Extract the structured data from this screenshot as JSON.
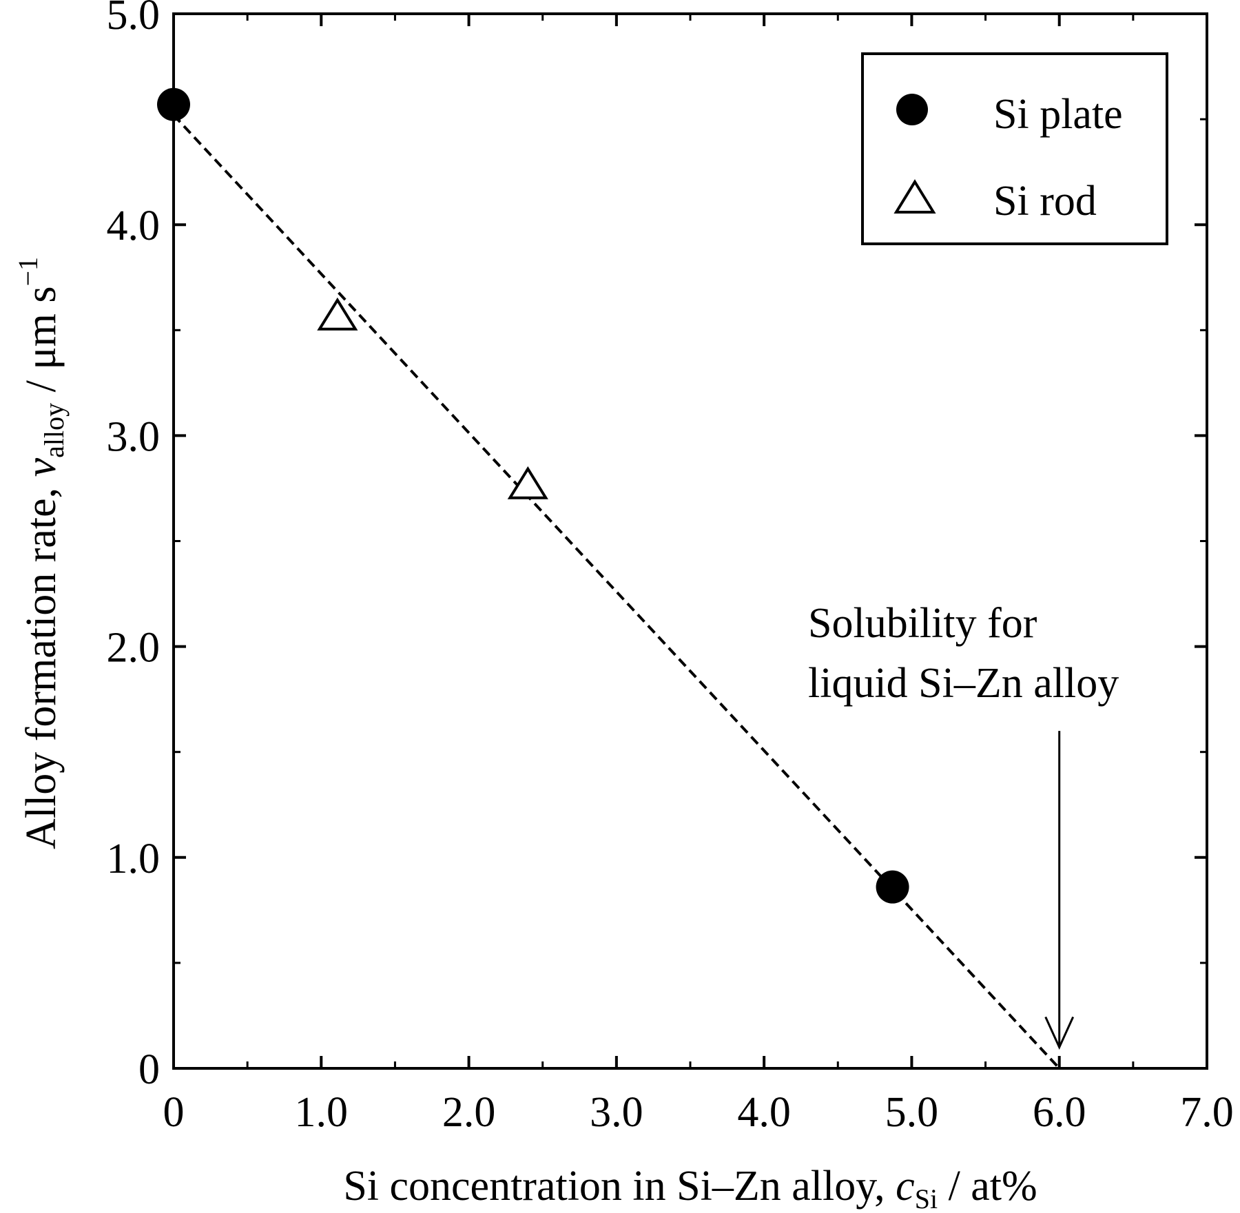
{
  "chart_data": {
    "type": "scatter",
    "xlabel": {
      "main": "Si concentration in Si–Zn alloy, ",
      "var": "c",
      "sub": "Si",
      "unit": " / at%"
    },
    "ylabel": {
      "main": "Alloy formation rate, ",
      "var": "v",
      "sub": "alloy",
      "unit_pre": " / μm s",
      "unit_sup": "−1"
    },
    "xlim": [
      0,
      7
    ],
    "ylim": [
      0,
      5
    ],
    "x_ticks": [
      {
        "value": 0,
        "label": "0"
      },
      {
        "value": 1,
        "label": "1.0"
      },
      {
        "value": 2,
        "label": "2.0"
      },
      {
        "value": 3,
        "label": "3.0"
      },
      {
        "value": 4,
        "label": "4.0"
      },
      {
        "value": 5,
        "label": "5.0"
      },
      {
        "value": 6,
        "label": "6.0"
      },
      {
        "value": 7,
        "label": "7.0"
      }
    ],
    "y_ticks": [
      {
        "value": 0,
        "label": "0"
      },
      {
        "value": 1,
        "label": "1.0"
      },
      {
        "value": 2,
        "label": "2.0"
      },
      {
        "value": 3,
        "label": "3.0"
      },
      {
        "value": 4,
        "label": "4.0"
      },
      {
        "value": 5,
        "label": "5.0"
      }
    ],
    "x_minor_step": 0.5,
    "y_minor_step": 0.5,
    "grid": false,
    "legend_position": "top-right",
    "series": [
      {
        "name": "Si plate",
        "marker": "filled-circle",
        "color": "#000000",
        "points": [
          {
            "x": 0.0,
            "y": 4.57
          },
          {
            "x": 4.87,
            "y": 0.86
          }
        ]
      },
      {
        "name": "Si rod",
        "marker": "open-triangle",
        "color": "#000000",
        "points": [
          {
            "x": 1.11,
            "y": 3.56
          },
          {
            "x": 2.4,
            "y": 2.76
          }
        ]
      }
    ],
    "fit_line": {
      "style": "dashed",
      "points": [
        {
          "x": 0.0,
          "y": 4.52
        },
        {
          "x": 6.0,
          "y": 0.0
        }
      ]
    },
    "annotation": {
      "lines": [
        "Solubility for",
        "liquid Si–Zn alloy"
      ],
      "arrow_x": 6.0,
      "arrow_from_y": 1.6,
      "arrow_to_y": 0.1
    }
  }
}
